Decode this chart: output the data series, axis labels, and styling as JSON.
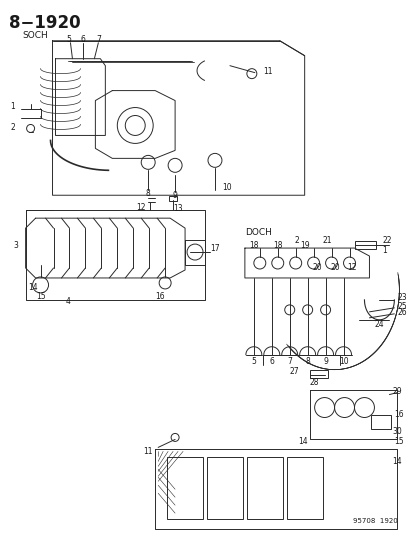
{
  "title": "8−1920",
  "subtitle_soch": "SOCH",
  "subtitle_doch": "DOCH",
  "footer": "95708  1920",
  "bg_color": "#ffffff",
  "line_color": "#2a2a2a",
  "text_color": "#1a1a1a",
  "fig_width": 4.14,
  "fig_height": 5.33,
  "dpi": 100,
  "title_fontsize": 11,
  "label_fontsize": 6.5,
  "small_fontsize": 5.5,
  "footer_fontsize": 5.5
}
